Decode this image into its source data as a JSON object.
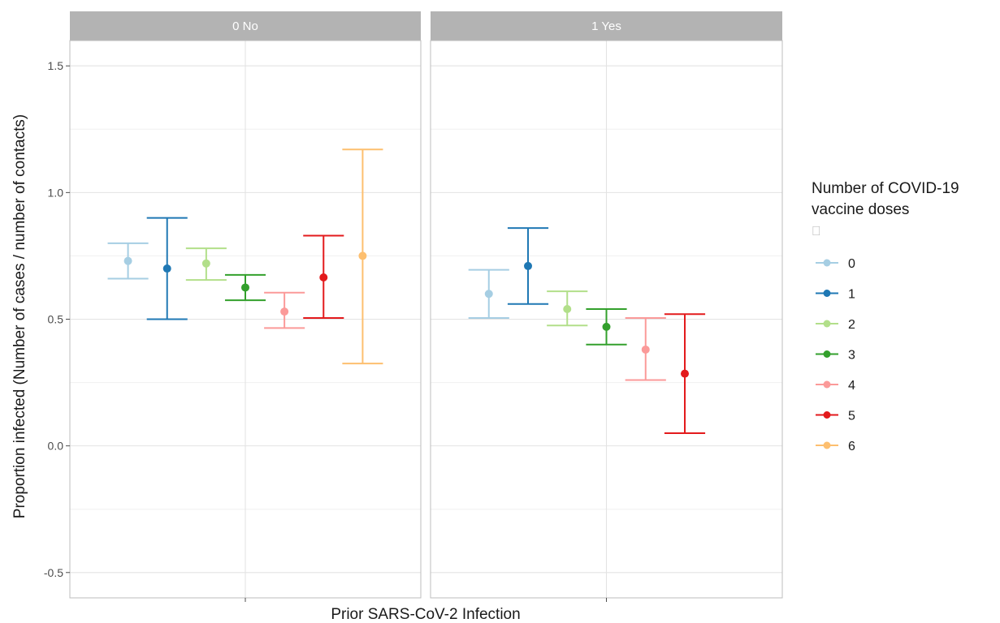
{
  "chart_data": {
    "type": "errorbar",
    "xlabel": "Prior SARS-CoV-2 Infection",
    "ylabel": "Proportion infected (Number of cases / number of contacts)",
    "ylim": [
      -0.6,
      1.6
    ],
    "yticks": [
      -0.5,
      0.0,
      0.5,
      1.0,
      1.5
    ],
    "ytick_labels": [
      "-0.5",
      "0.0",
      "0.5",
      "1.0",
      "1.5"
    ],
    "grid": true,
    "legend": {
      "title_line1": "Number of COVID-19",
      "title_line2": " vaccine doses",
      "title_glyph": "⎕",
      "placement": "right"
    },
    "series": [
      {
        "name": "0",
        "color": "#a6cee3"
      },
      {
        "name": "1",
        "color": "#1f78b4"
      },
      {
        "name": "2",
        "color": "#b2df8a"
      },
      {
        "name": "3",
        "color": "#33a02c"
      },
      {
        "name": "4",
        "color": "#fb9a99"
      },
      {
        "name": "5",
        "color": "#e31a1c"
      },
      {
        "name": "6",
        "color": "#fdbf6f"
      }
    ],
    "panels": [
      {
        "label": "0 No",
        "points": [
          {
            "dose": "0",
            "y": 0.73,
            "lower": 0.66,
            "upper": 0.8
          },
          {
            "dose": "1",
            "y": 0.7,
            "lower": 0.5,
            "upper": 0.9
          },
          {
            "dose": "2",
            "y": 0.72,
            "lower": 0.655,
            "upper": 0.78
          },
          {
            "dose": "3",
            "y": 0.625,
            "lower": 0.575,
            "upper": 0.675
          },
          {
            "dose": "4",
            "y": 0.53,
            "lower": 0.465,
            "upper": 0.605
          },
          {
            "dose": "5",
            "y": 0.665,
            "lower": 0.505,
            "upper": 0.83
          },
          {
            "dose": "6",
            "y": 0.75,
            "lower": 0.325,
            "upper": 1.17
          }
        ]
      },
      {
        "label": "1 Yes",
        "points": [
          {
            "dose": "0",
            "y": 0.6,
            "lower": 0.505,
            "upper": 0.695
          },
          {
            "dose": "1",
            "y": 0.71,
            "lower": 0.56,
            "upper": 0.86
          },
          {
            "dose": "2",
            "y": 0.54,
            "lower": 0.475,
            "upper": 0.61
          },
          {
            "dose": "3",
            "y": 0.47,
            "lower": 0.4,
            "upper": 0.54
          },
          {
            "dose": "4",
            "y": 0.38,
            "lower": 0.26,
            "upper": 0.505
          },
          {
            "dose": "5",
            "y": 0.285,
            "lower": 0.05,
            "upper": 0.52
          }
        ]
      }
    ]
  }
}
